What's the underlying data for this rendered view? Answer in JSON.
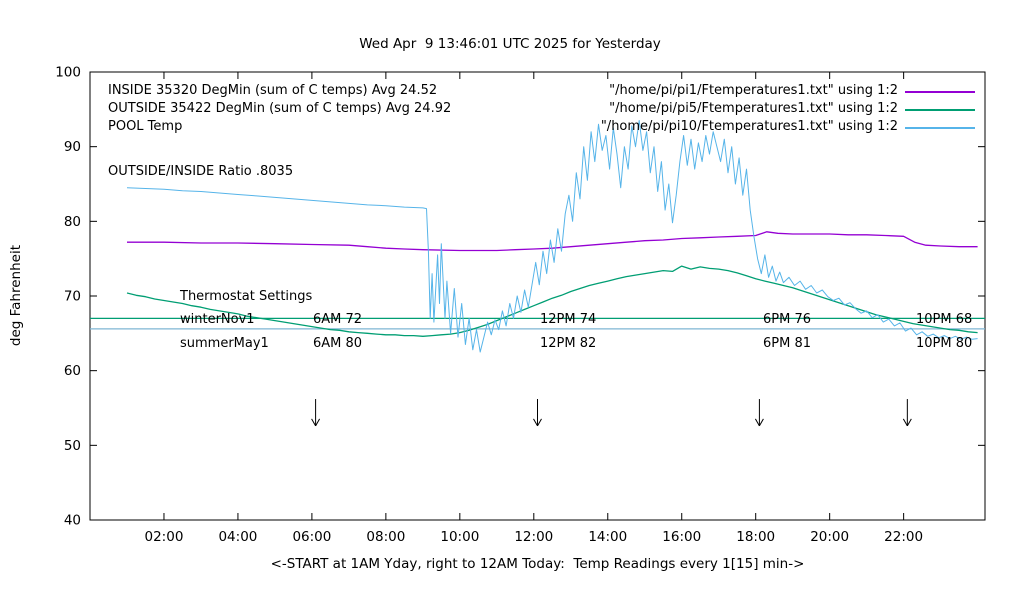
{
  "legend": {
    "rows": [
      {
        "label": "INSIDE 35320 DegMin (sum of C temps) Avg 24.52",
        "file": "\"/home/pi/pi1/Ftemperatures1.txt\" using 1:2",
        "color": "#9400d3"
      },
      {
        "label": "OUTSIDE 35422 DegMin (sum of C temps) Avg 24.92",
        "file": "\"/home/pi/pi5/Ftemperatures1.txt\" using 1:2",
        "color": "#009e73"
      },
      {
        "label": "POOL Temp",
        "file": "\"/home/pi/pi10/Ftemperatures1.txt\" using 1:2",
        "color": "#56b4e9"
      }
    ],
    "ratio_text": "OUTSIDE/INSIDE Ratio .8035"
  },
  "thermostat": {
    "heading": "Thermostat Settings",
    "rows": [
      {
        "label": "winterNov1",
        "cells": [
          "6AM 72",
          "12PM 74",
          "6PM 76",
          "10PM 68"
        ]
      },
      {
        "label": "summerMay1",
        "cells": [
          "6AM 80",
          "12PM 82",
          "6PM 81",
          "10PM 80"
        ]
      }
    ]
  },
  "chart_data": {
    "type": "line",
    "title": "Wed Apr  9 13:46:01 UTC 2025 for Yesterday",
    "xlabel": "<-START at 1AM Yday, right to 12AM Today:  Temp Readings every 1[15] min->",
    "ylabel": "deg Fahrenheit",
    "xlim": [
      0,
      24.2
    ],
    "ylim": [
      40,
      100
    ],
    "grid": false,
    "legend_position": "top-left-inside",
    "x_ticks": [
      {
        "t": 2,
        "label": "02:00"
      },
      {
        "t": 4,
        "label": "04:00"
      },
      {
        "t": 6,
        "label": "06:00"
      },
      {
        "t": 8,
        "label": "08:00"
      },
      {
        "t": 10,
        "label": "10:00"
      },
      {
        "t": 12,
        "label": "12:00"
      },
      {
        "t": 14,
        "label": "14:00"
      },
      {
        "t": 16,
        "label": "16:00"
      },
      {
        "t": 18,
        "label": "18:00"
      },
      {
        "t": 20,
        "label": "20:00"
      },
      {
        "t": 22,
        "label": "22:00"
      }
    ],
    "y_ticks": [
      40,
      50,
      60,
      70,
      80,
      90,
      100
    ],
    "reference_lines": [
      {
        "y": 67.0,
        "color": "#009e73"
      },
      {
        "y": 65.6,
        "color": "#7fb6d4"
      }
    ],
    "arrows": {
      "color": "#000000",
      "times": [
        6.1,
        12.1,
        18.1,
        22.1
      ],
      "y_from": 56.2,
      "y_to": 52.6
    },
    "series": [
      {
        "name": "INSIDE",
        "color": "#9400d3",
        "points": [
          [
            1,
            77.2
          ],
          [
            2,
            77.2
          ],
          [
            3,
            77.1
          ],
          [
            4,
            77.1
          ],
          [
            5,
            77.0
          ],
          [
            6,
            76.9
          ],
          [
            7,
            76.8
          ],
          [
            7.5,
            76.6
          ],
          [
            8,
            76.4
          ],
          [
            8.5,
            76.3
          ],
          [
            9,
            76.2
          ],
          [
            10,
            76.1
          ],
          [
            11,
            76.1
          ],
          [
            11.5,
            76.2
          ],
          [
            12,
            76.3
          ],
          [
            12.5,
            76.4
          ],
          [
            13,
            76.6
          ],
          [
            13.5,
            76.8
          ],
          [
            14,
            77.0
          ],
          [
            14.5,
            77.2
          ],
          [
            15,
            77.4
          ],
          [
            15.5,
            77.5
          ],
          [
            16,
            77.7
          ],
          [
            16.5,
            77.8
          ],
          [
            17,
            77.9
          ],
          [
            17.5,
            78.0
          ],
          [
            18,
            78.1
          ],
          [
            18.3,
            78.6
          ],
          [
            18.6,
            78.4
          ],
          [
            19,
            78.3
          ],
          [
            19.5,
            78.3
          ],
          [
            20,
            78.3
          ],
          [
            20.5,
            78.2
          ],
          [
            21,
            78.2
          ],
          [
            21.5,
            78.1
          ],
          [
            22,
            78.0
          ],
          [
            22.3,
            77.2
          ],
          [
            22.6,
            76.8
          ],
          [
            23,
            76.7
          ],
          [
            23.5,
            76.6
          ],
          [
            24,
            76.6
          ]
        ]
      },
      {
        "name": "OUTSIDE",
        "color": "#009e73",
        "points": [
          [
            1,
            70.4
          ],
          [
            1.25,
            70.1
          ],
          [
            1.5,
            69.9
          ],
          [
            1.75,
            69.6
          ],
          [
            2,
            69.4
          ],
          [
            2.25,
            69.2
          ],
          [
            2.5,
            69.0
          ],
          [
            2.75,
            68.7
          ],
          [
            3,
            68.5
          ],
          [
            3.25,
            68.2
          ],
          [
            3.5,
            68.0
          ],
          [
            3.75,
            67.8
          ],
          [
            4,
            67.6
          ],
          [
            4.25,
            67.3
          ],
          [
            4.5,
            67.1
          ],
          [
            4.75,
            66.9
          ],
          [
            5,
            66.7
          ],
          [
            5.25,
            66.5
          ],
          [
            5.5,
            66.3
          ],
          [
            5.75,
            66.1
          ],
          [
            6,
            65.9
          ],
          [
            6.25,
            65.7
          ],
          [
            6.5,
            65.5
          ],
          [
            6.75,
            65.4
          ],
          [
            7,
            65.2
          ],
          [
            7.25,
            65.1
          ],
          [
            7.5,
            65.0
          ],
          [
            7.75,
            64.9
          ],
          [
            8,
            64.8
          ],
          [
            8.25,
            64.8
          ],
          [
            8.5,
            64.7
          ],
          [
            8.75,
            64.7
          ],
          [
            9,
            64.6
          ],
          [
            9.25,
            64.7
          ],
          [
            9.5,
            64.8
          ],
          [
            9.75,
            64.9
          ],
          [
            10,
            65.1
          ],
          [
            10.25,
            65.4
          ],
          [
            10.5,
            65.8
          ],
          [
            10.75,
            66.2
          ],
          [
            11,
            66.7
          ],
          [
            11.25,
            67.2
          ],
          [
            11.5,
            67.7
          ],
          [
            11.75,
            68.2
          ],
          [
            12,
            68.7
          ],
          [
            12.25,
            69.2
          ],
          [
            12.5,
            69.7
          ],
          [
            12.75,
            70.1
          ],
          [
            13,
            70.6
          ],
          [
            13.25,
            71.0
          ],
          [
            13.5,
            71.4
          ],
          [
            13.75,
            71.7
          ],
          [
            14,
            72.0
          ],
          [
            14.25,
            72.3
          ],
          [
            14.5,
            72.6
          ],
          [
            14.75,
            72.8
          ],
          [
            15,
            73.0
          ],
          [
            15.25,
            73.2
          ],
          [
            15.5,
            73.4
          ],
          [
            15.75,
            73.3
          ],
          [
            16,
            74.0
          ],
          [
            16.25,
            73.6
          ],
          [
            16.5,
            73.9
          ],
          [
            16.75,
            73.7
          ],
          [
            17,
            73.6
          ],
          [
            17.25,
            73.4
          ],
          [
            17.5,
            73.1
          ],
          [
            17.75,
            72.7
          ],
          [
            18,
            72.3
          ],
          [
            18.25,
            72.0
          ],
          [
            18.5,
            71.7
          ],
          [
            18.75,
            71.4
          ],
          [
            19,
            71.1
          ],
          [
            19.25,
            70.7
          ],
          [
            19.5,
            70.3
          ],
          [
            19.75,
            69.9
          ],
          [
            20,
            69.5
          ],
          [
            20.25,
            69.1
          ],
          [
            20.5,
            68.7
          ],
          [
            20.75,
            68.3
          ],
          [
            21,
            67.9
          ],
          [
            21.25,
            67.5
          ],
          [
            21.5,
            67.2
          ],
          [
            21.75,
            66.9
          ],
          [
            22,
            66.6
          ],
          [
            22.25,
            66.3
          ],
          [
            22.5,
            66.1
          ],
          [
            22.75,
            65.9
          ],
          [
            23,
            65.7
          ],
          [
            23.25,
            65.5
          ],
          [
            23.5,
            65.4
          ],
          [
            23.75,
            65.2
          ],
          [
            24,
            65.1
          ]
        ]
      },
      {
        "name": "POOL",
        "color": "#56b4e9",
        "points": [
          [
            1,
            84.5
          ],
          [
            1.5,
            84.4
          ],
          [
            2,
            84.3
          ],
          [
            2.5,
            84.1
          ],
          [
            3,
            84.0
          ],
          [
            3.5,
            83.8
          ],
          [
            4,
            83.6
          ],
          [
            4.5,
            83.4
          ],
          [
            5,
            83.2
          ],
          [
            5.5,
            83.0
          ],
          [
            6,
            82.8
          ],
          [
            6.5,
            82.6
          ],
          [
            7,
            82.4
          ],
          [
            7.5,
            82.2
          ],
          [
            8,
            82.1
          ],
          [
            8.5,
            81.9
          ],
          [
            9,
            81.8
          ],
          [
            9.1,
            81.7
          ],
          [
            9.15,
            76
          ],
          [
            9.2,
            67
          ],
          [
            9.25,
            73
          ],
          [
            9.3,
            66.5
          ],
          [
            9.4,
            75.5
          ],
          [
            9.45,
            69
          ],
          [
            9.5,
            77
          ],
          [
            9.6,
            67
          ],
          [
            9.65,
            72
          ],
          [
            9.75,
            65
          ],
          [
            9.85,
            71
          ],
          [
            9.95,
            64.5
          ],
          [
            10.05,
            69
          ],
          [
            10.15,
            63.5
          ],
          [
            10.25,
            67
          ],
          [
            10.35,
            62.8
          ],
          [
            10.45,
            65.5
          ],
          [
            10.55,
            62.5
          ],
          [
            10.65,
            64.5
          ],
          [
            10.75,
            66.5
          ],
          [
            10.85,
            64.8
          ],
          [
            10.95,
            66.8
          ],
          [
            11.05,
            65.5
          ],
          [
            11.15,
            68
          ],
          [
            11.25,
            66
          ],
          [
            11.35,
            69
          ],
          [
            11.45,
            67
          ],
          [
            11.55,
            70
          ],
          [
            11.65,
            67.8
          ],
          [
            11.75,
            70.8
          ],
          [
            11.85,
            68.5
          ],
          [
            11.95,
            71.5
          ],
          [
            12.05,
            74.5
          ],
          [
            12.15,
            71.5
          ],
          [
            12.25,
            76
          ],
          [
            12.35,
            73
          ],
          [
            12.45,
            77.5
          ],
          [
            12.55,
            74.5
          ],
          [
            12.65,
            79
          ],
          [
            12.75,
            76
          ],
          [
            12.85,
            81
          ],
          [
            12.95,
            83.5
          ],
          [
            13.05,
            80
          ],
          [
            13.15,
            86.5
          ],
          [
            13.25,
            83
          ],
          [
            13.35,
            90
          ],
          [
            13.45,
            85.5
          ],
          [
            13.55,
            92
          ],
          [
            13.65,
            88
          ],
          [
            13.75,
            93
          ],
          [
            13.85,
            89.5
          ],
          [
            13.95,
            91.5
          ],
          [
            14.05,
            87
          ],
          [
            14.15,
            92.5
          ],
          [
            14.25,
            89
          ],
          [
            14.35,
            84.5
          ],
          [
            14.45,
            90
          ],
          [
            14.55,
            87
          ],
          [
            14.65,
            92.8
          ],
          [
            14.75,
            90
          ],
          [
            14.85,
            93.5
          ],
          [
            14.95,
            89.5
          ],
          [
            15.05,
            92
          ],
          [
            15.15,
            86.5
          ],
          [
            15.25,
            90
          ],
          [
            15.35,
            84
          ],
          [
            15.45,
            88
          ],
          [
            15.55,
            81.5
          ],
          [
            15.65,
            85
          ],
          [
            15.75,
            79.8
          ],
          [
            15.85,
            83.5
          ],
          [
            15.95,
            88
          ],
          [
            16.05,
            91.5
          ],
          [
            16.15,
            87.5
          ],
          [
            16.25,
            91
          ],
          [
            16.35,
            87
          ],
          [
            16.45,
            90.5
          ],
          [
            16.55,
            88
          ],
          [
            16.65,
            91.5
          ],
          [
            16.75,
            89
          ],
          [
            16.85,
            92
          ],
          [
            16.95,
            90
          ],
          [
            17.05,
            88
          ],
          [
            17.15,
            91
          ],
          [
            17.25,
            86.5
          ],
          [
            17.35,
            90
          ],
          [
            17.45,
            85
          ],
          [
            17.55,
            88.5
          ],
          [
            17.65,
            83.5
          ],
          [
            17.75,
            87
          ],
          [
            17.85,
            81.5
          ],
          [
            17.95,
            78
          ],
          [
            18.05,
            75
          ],
          [
            18.15,
            73
          ],
          [
            18.25,
            75.5
          ],
          [
            18.35,
            72.5
          ],
          [
            18.45,
            74
          ],
          [
            18.55,
            72
          ],
          [
            18.65,
            73.2
          ],
          [
            18.75,
            71.8
          ],
          [
            18.9,
            72.5
          ],
          [
            19.05,
            71.4
          ],
          [
            19.2,
            72
          ],
          [
            19.35,
            70.9
          ],
          [
            19.5,
            71.4
          ],
          [
            19.65,
            70.4
          ],
          [
            19.8,
            70.8
          ],
          [
            19.95,
            69.9
          ],
          [
            20.1,
            69.4
          ],
          [
            20.25,
            69.7
          ],
          [
            20.4,
            68.8
          ],
          [
            20.55,
            69.1
          ],
          [
            20.7,
            68.3
          ],
          [
            20.85,
            67.7
          ],
          [
            21,
            68
          ],
          [
            21.15,
            67.1
          ],
          [
            21.3,
            67.5
          ],
          [
            21.45,
            66.5
          ],
          [
            21.6,
            66.9
          ],
          [
            21.75,
            66
          ],
          [
            21.9,
            66.4
          ],
          [
            22.05,
            65.3
          ],
          [
            22.2,
            65.7
          ],
          [
            22.35,
            64.8
          ],
          [
            22.5,
            65.2
          ],
          [
            22.65,
            64.6
          ],
          [
            22.8,
            64.9
          ],
          [
            22.95,
            64.4
          ],
          [
            23.1,
            64.7
          ],
          [
            23.25,
            64.3
          ],
          [
            23.4,
            64.6
          ],
          [
            23.55,
            64.2
          ],
          [
            23.7,
            64.5
          ],
          [
            23.85,
            64.2
          ],
          [
            24,
            64.3
          ]
        ]
      }
    ]
  }
}
